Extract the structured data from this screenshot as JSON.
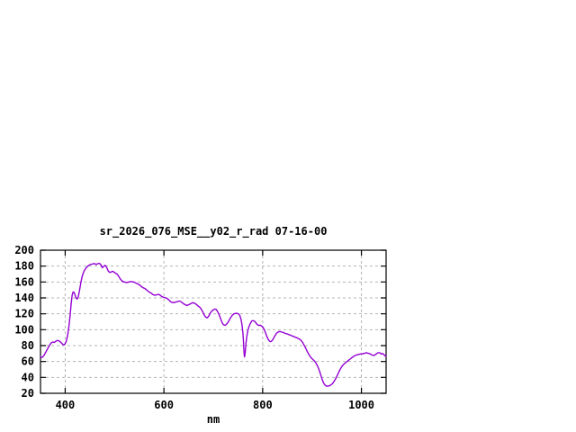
{
  "page": {
    "background_color": "#ffffff",
    "text_color": "#000000"
  },
  "chart_data": {
    "type": "line",
    "title": "sr_2026_076_MSE__y02_r_rad 07-16-00",
    "xlabel": "nm",
    "ylabel": "",
    "xlim": [
      350,
      1050
    ],
    "ylim": [
      20,
      200
    ],
    "xticks": [
      400,
      600,
      800,
      1000
    ],
    "yticks": [
      20,
      40,
      60,
      80,
      100,
      120,
      140,
      160,
      180,
      200
    ],
    "grid": true,
    "legend_position": "none",
    "line_color": "#9400d3",
    "grid_color": "#b4b4b4",
    "axis_color": "#000000",
    "series": [
      {
        "name": "sr_2026_076_MSE__y02_r_rad",
        "points": [
          [
            350,
            66
          ],
          [
            352,
            65
          ],
          [
            354,
            65.5
          ],
          [
            357,
            67.5
          ],
          [
            360,
            71
          ],
          [
            363,
            74.5
          ],
          [
            366,
            78
          ],
          [
            369,
            81
          ],
          [
            372,
            83.5
          ],
          [
            375,
            84.5
          ],
          [
            378,
            84
          ],
          [
            381,
            85.5
          ],
          [
            384,
            86.5
          ],
          [
            387,
            86
          ],
          [
            390,
            85
          ],
          [
            393,
            83
          ],
          [
            396,
            81
          ],
          [
            399,
            81.5
          ],
          [
            402,
            85
          ],
          [
            404,
            90
          ],
          [
            406,
            97
          ],
          [
            408,
            106
          ],
          [
            410,
            118
          ],
          [
            412,
            132
          ],
          [
            414,
            143
          ],
          [
            416,
            147.5
          ],
          [
            418,
            147
          ],
          [
            420,
            143.5
          ],
          [
            422,
            140
          ],
          [
            424,
            138.5
          ],
          [
            426,
            140.5
          ],
          [
            428,
            146
          ],
          [
            430,
            153
          ],
          [
            432,
            160
          ],
          [
            434,
            166
          ],
          [
            436,
            170.5
          ],
          [
            439,
            174.5
          ],
          [
            442,
            177.5
          ],
          [
            445,
            179.5
          ],
          [
            448,
            181
          ],
          [
            451,
            182
          ],
          [
            454,
            182.5
          ],
          [
            457,
            183
          ],
          [
            460,
            183
          ],
          [
            463,
            182
          ],
          [
            466,
            183
          ],
          [
            469,
            183.5
          ],
          [
            472,
            182
          ],
          [
            475,
            178
          ],
          [
            478,
            179.5
          ],
          [
            481,
            181
          ],
          [
            484,
            178.5
          ],
          [
            487,
            174
          ],
          [
            490,
            172
          ],
          [
            493,
            172.5
          ],
          [
            496,
            173.5
          ],
          [
            499,
            172.5
          ],
          [
            502,
            171
          ],
          [
            505,
            170
          ],
          [
            508,
            167.5
          ],
          [
            511,
            164.5
          ],
          [
            514,
            162
          ],
          [
            517,
            160.5
          ],
          [
            520,
            160
          ],
          [
            523,
            159.5
          ],
          [
            526,
            159.5
          ],
          [
            529,
            160
          ],
          [
            532,
            160.5
          ],
          [
            535,
            160.5
          ],
          [
            538,
            160
          ],
          [
            541,
            159.5
          ],
          [
            544,
            158.5
          ],
          [
            547,
            157.5
          ],
          [
            550,
            156.5
          ],
          [
            553,
            155
          ],
          [
            556,
            153.5
          ],
          [
            559,
            152.5
          ],
          [
            562,
            151.5
          ],
          [
            565,
            150
          ],
          [
            568,
            148.5
          ],
          [
            571,
            147
          ],
          [
            574,
            146
          ],
          [
            577,
            144.5
          ],
          [
            580,
            143.5
          ],
          [
            583,
            143.5
          ],
          [
            586,
            144
          ],
          [
            589,
            144.5
          ],
          [
            592,
            143.5
          ],
          [
            595,
            142
          ],
          [
            598,
            141
          ],
          [
            601,
            140.5
          ],
          [
            604,
            140
          ],
          [
            607,
            139
          ],
          [
            610,
            137.5
          ],
          [
            613,
            135.5
          ],
          [
            616,
            134.5
          ],
          [
            619,
            134
          ],
          [
            622,
            134.5
          ],
          [
            625,
            135
          ],
          [
            628,
            135.5
          ],
          [
            631,
            136
          ],
          [
            634,
            135.5
          ],
          [
            637,
            134
          ],
          [
            640,
            132.5
          ],
          [
            643,
            131.5
          ],
          [
            646,
            130.5
          ],
          [
            649,
            131
          ],
          [
            652,
            132
          ],
          [
            655,
            133
          ],
          [
            658,
            134
          ],
          [
            661,
            133.5
          ],
          [
            664,
            132.5
          ],
          [
            667,
            131
          ],
          [
            670,
            129.5
          ],
          [
            673,
            128
          ],
          [
            676,
            125.5
          ],
          [
            679,
            122
          ],
          [
            682,
            118
          ],
          [
            685,
            115.5
          ],
          [
            688,
            115
          ],
          [
            691,
            117.5
          ],
          [
            694,
            121
          ],
          [
            697,
            123.5
          ],
          [
            700,
            125
          ],
          [
            703,
            126
          ],
          [
            706,
            125.5
          ],
          [
            709,
            122.5
          ],
          [
            712,
            118.5
          ],
          [
            715,
            113.5
          ],
          [
            718,
            108.5
          ],
          [
            721,
            106
          ],
          [
            724,
            105.5
          ],
          [
            727,
            107
          ],
          [
            730,
            109.5
          ],
          [
            733,
            113
          ],
          [
            736,
            116
          ],
          [
            739,
            118.5
          ],
          [
            742,
            120
          ],
          [
            745,
            120.5
          ],
          [
            748,
            120.5
          ],
          [
            751,
            120
          ],
          [
            754,
            117.5
          ],
          [
            756,
            113.5
          ],
          [
            758,
            107
          ],
          [
            760,
            96
          ],
          [
            761,
            86
          ],
          [
            762,
            74
          ],
          [
            763,
            66
          ],
          [
            764,
            68
          ],
          [
            765,
            74
          ],
          [
            766,
            82
          ],
          [
            768,
            92
          ],
          [
            770,
            99
          ],
          [
            772,
            103.5
          ],
          [
            774,
            106.5
          ],
          [
            776,
            109
          ],
          [
            778,
            111
          ],
          [
            780,
            111.5
          ],
          [
            782,
            111
          ],
          [
            784,
            110.5
          ],
          [
            786,
            109
          ],
          [
            788,
            107
          ],
          [
            790,
            106
          ],
          [
            792,
            105.5
          ],
          [
            794,
            105.5
          ],
          [
            796,
            105.5
          ],
          [
            798,
            104.5
          ],
          [
            800,
            103.5
          ],
          [
            802,
            101.5
          ],
          [
            804,
            99
          ],
          [
            806,
            96
          ],
          [
            808,
            92.5
          ],
          [
            810,
            89.5
          ],
          [
            812,
            87
          ],
          [
            814,
            85.5
          ],
          [
            816,
            85
          ],
          [
            818,
            85.5
          ],
          [
            820,
            87
          ],
          [
            822,
            89
          ],
          [
            824,
            91.5
          ],
          [
            826,
            93.5
          ],
          [
            828,
            95.5
          ],
          [
            830,
            96.5
          ],
          [
            833,
            97.5
          ],
          [
            836,
            97.5
          ],
          [
            839,
            97
          ],
          [
            842,
            96.5
          ],
          [
            845,
            95.5
          ],
          [
            848,
            95
          ],
          [
            851,
            94.5
          ],
          [
            854,
            93.5
          ],
          [
            857,
            93
          ],
          [
            860,
            92
          ],
          [
            863,
            91.5
          ],
          [
            866,
            90.5
          ],
          [
            869,
            90
          ],
          [
            872,
            89
          ],
          [
            875,
            88
          ],
          [
            878,
            86.5
          ],
          [
            881,
            84
          ],
          [
            884,
            80.5
          ],
          [
            887,
            77
          ],
          [
            890,
            73
          ],
          [
            893,
            69.5
          ],
          [
            896,
            66.5
          ],
          [
            899,
            64
          ],
          [
            902,
            62.5
          ],
          [
            905,
            60.5
          ],
          [
            908,
            58
          ],
          [
            911,
            54.5
          ],
          [
            914,
            50
          ],
          [
            917,
            44.5
          ],
          [
            920,
            38.5
          ],
          [
            923,
            33.5
          ],
          [
            926,
            30.5
          ],
          [
            929,
            29
          ],
          [
            932,
            29
          ],
          [
            935,
            29.5
          ],
          [
            938,
            30.5
          ],
          [
            941,
            32
          ],
          [
            944,
            34.5
          ],
          [
            947,
            37.5
          ],
          [
            950,
            41
          ],
          [
            953,
            45
          ],
          [
            956,
            49
          ],
          [
            959,
            52.5
          ],
          [
            962,
            55
          ],
          [
            965,
            57
          ],
          [
            968,
            58.5
          ],
          [
            971,
            60
          ],
          [
            974,
            61.5
          ],
          [
            977,
            63
          ],
          [
            980,
            64.5
          ],
          [
            983,
            66
          ],
          [
            986,
            67
          ],
          [
            989,
            68
          ],
          [
            992,
            68.5
          ],
          [
            995,
            69
          ],
          [
            998,
            69.5
          ],
          [
            1001,
            69.5
          ],
          [
            1004,
            70
          ],
          [
            1007,
            70.5
          ],
          [
            1010,
            71
          ],
          [
            1013,
            70.5
          ],
          [
            1016,
            70
          ],
          [
            1019,
            69
          ],
          [
            1022,
            68
          ],
          [
            1025,
            67.5
          ],
          [
            1028,
            68.5
          ],
          [
            1031,
            70
          ],
          [
            1034,
            71
          ],
          [
            1037,
            71
          ],
          [
            1040,
            69.5
          ],
          [
            1043,
            70
          ],
          [
            1046,
            68.5
          ],
          [
            1048,
            67
          ],
          [
            1050,
            66.5
          ]
        ]
      }
    ]
  }
}
